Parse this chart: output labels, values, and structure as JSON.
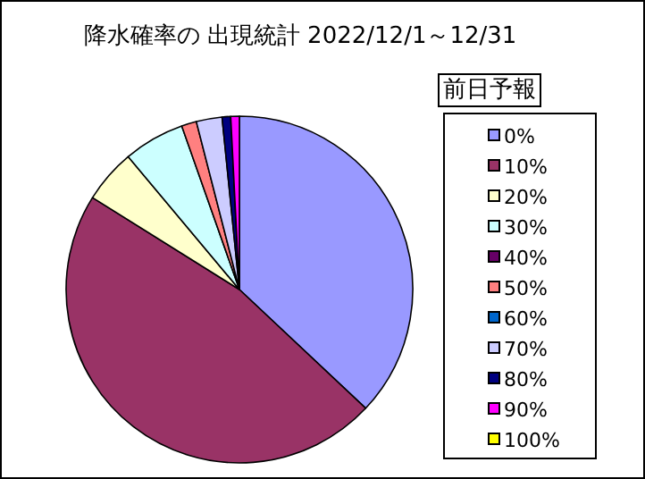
{
  "chart_data": {
    "type": "pie",
    "title": "降水確率の 出現統計 2022/12/1～12/31",
    "legend_title": "前日予報",
    "legend": "right",
    "categories": [
      "0%",
      "10%",
      "20%",
      "30%",
      "40%",
      "50%",
      "60%",
      "70%",
      "80%",
      "90%",
      "100%"
    ],
    "values": [
      37,
      46.9,
      5,
      5.7,
      0,
      1.4,
      0,
      2.4,
      0.8,
      0.8,
      0
    ],
    "colors": [
      "#9999ff",
      "#993366",
      "#ffffcc",
      "#ccffff",
      "#660066",
      "#ff8080",
      "#0066cc",
      "#ccccff",
      "#000080",
      "#ff00ff",
      "#ffff00"
    ]
  }
}
